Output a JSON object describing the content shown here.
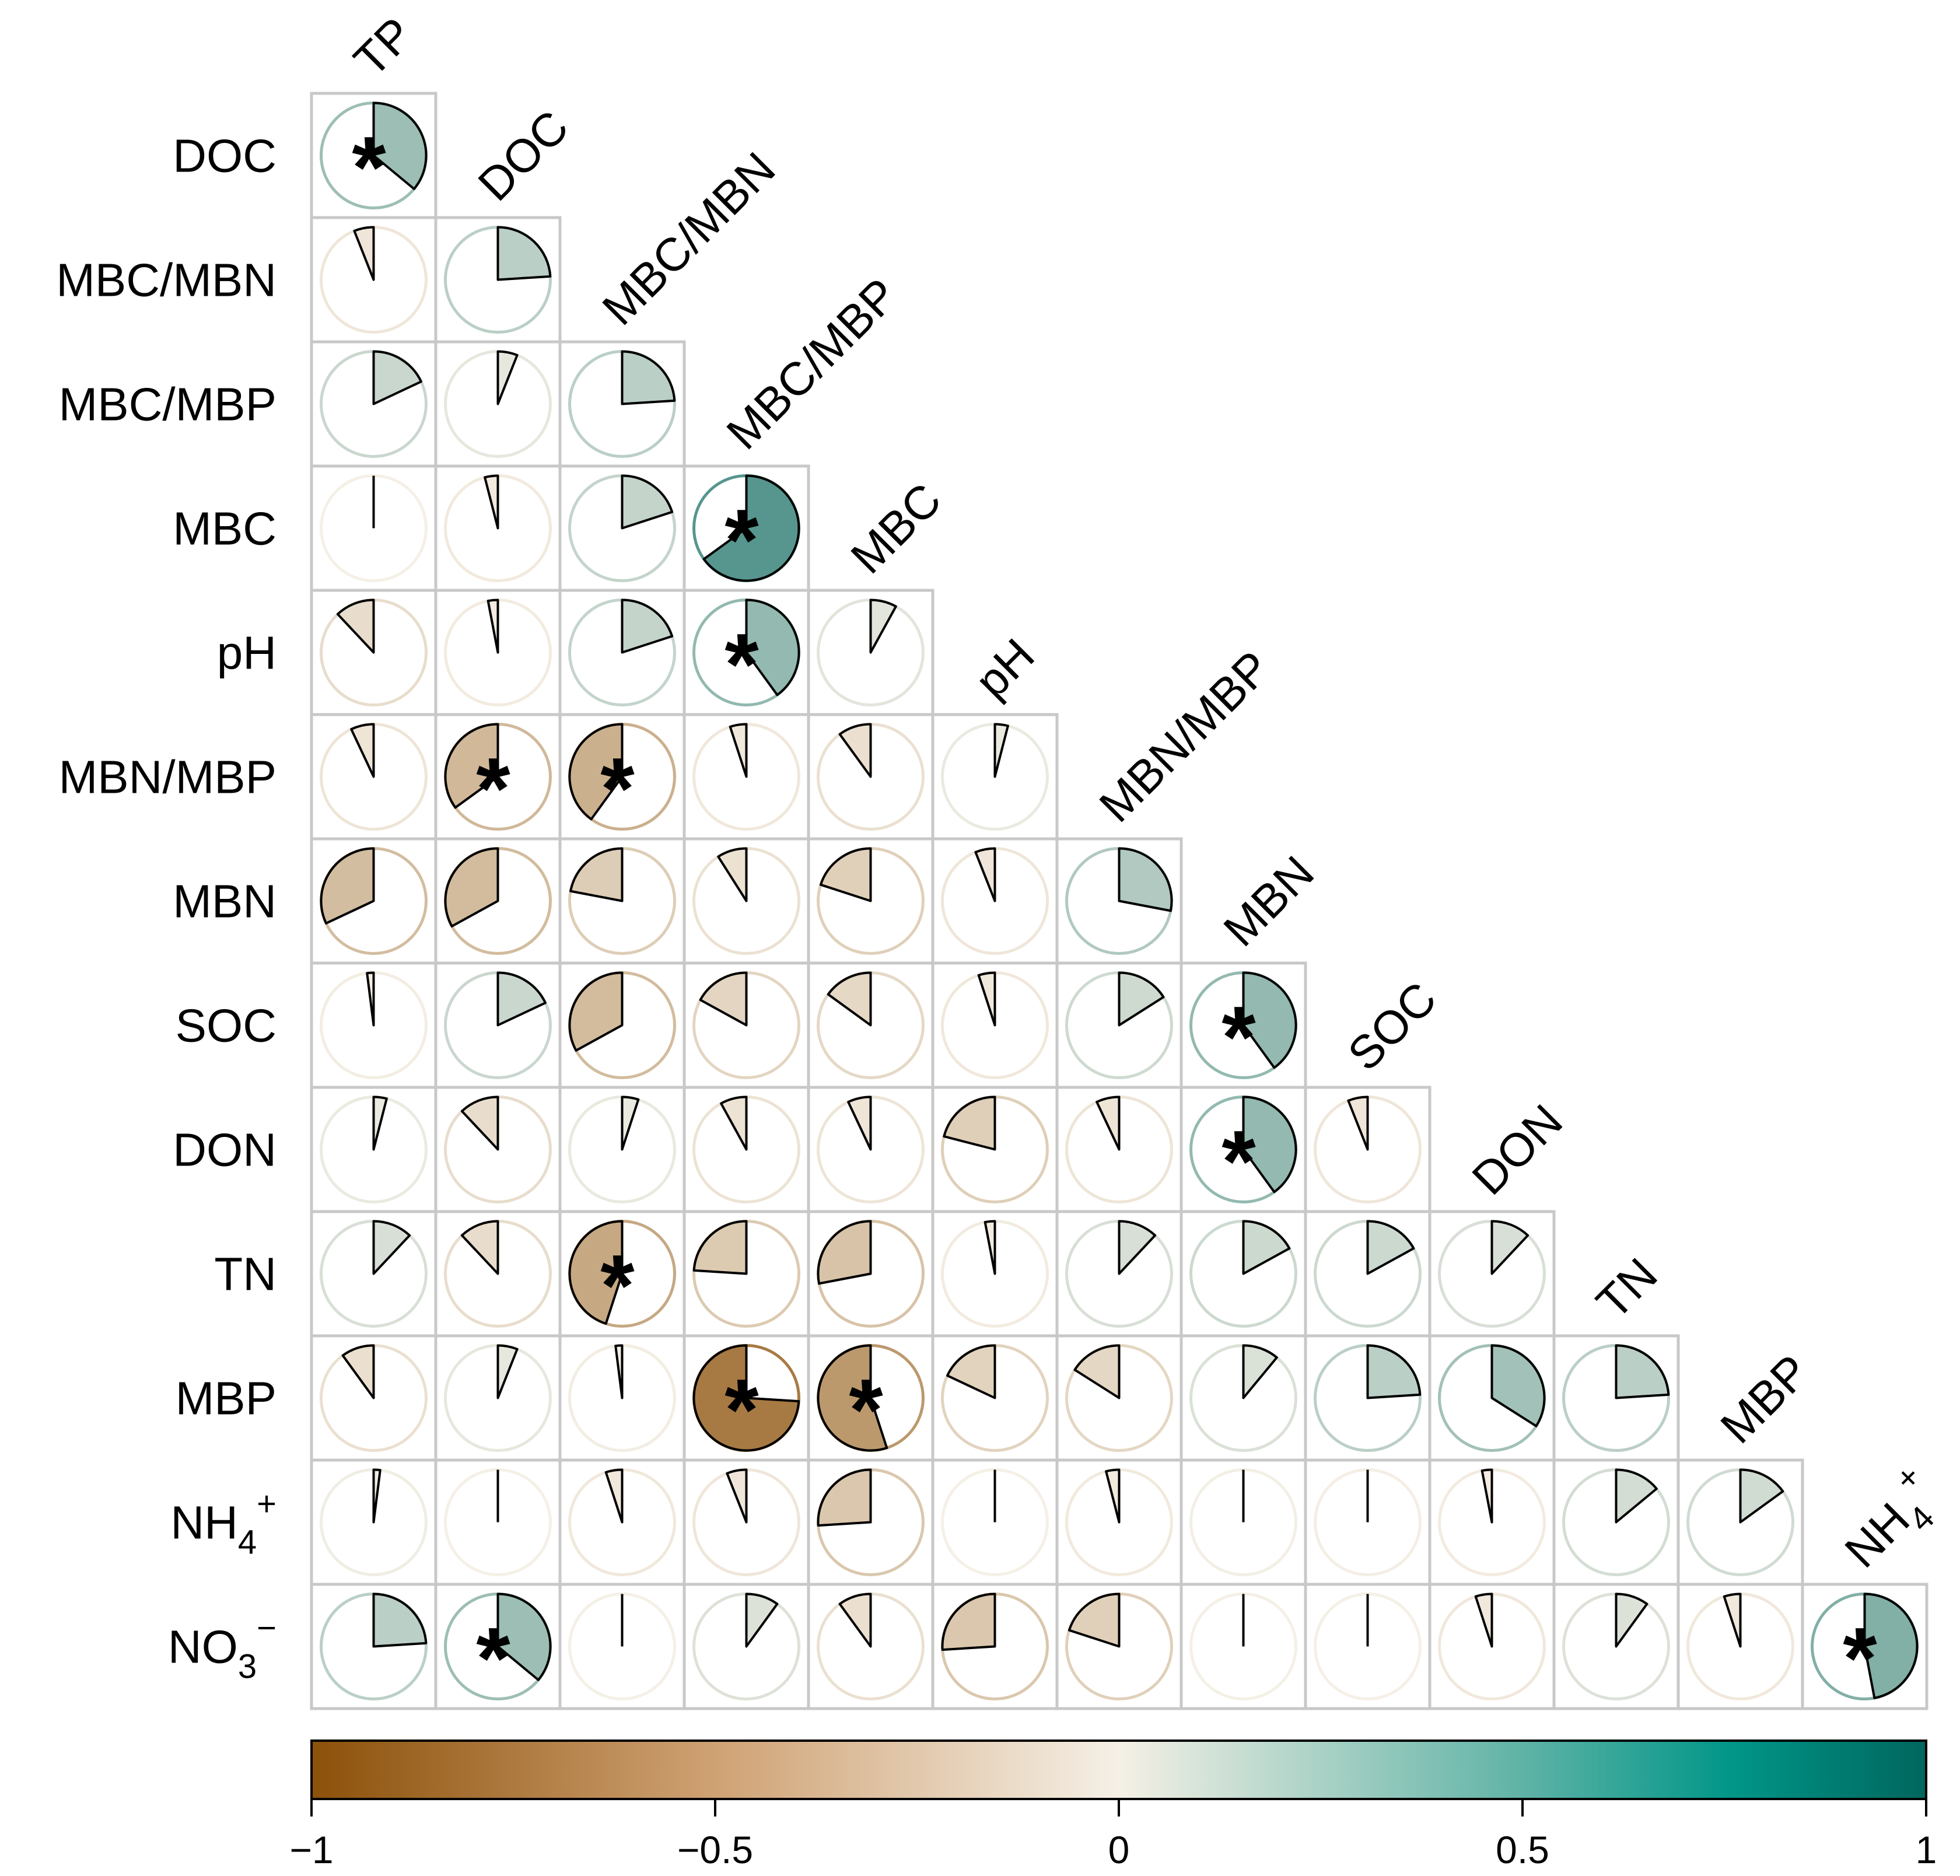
{
  "chart_data": {
    "type": "correlation-matrix-pie",
    "title": "",
    "row_labels": [
      "DOC",
      "MBC/MBN",
      "MBC/MBP",
      "MBC",
      "pH",
      "MBN/MBP",
      "MBN",
      "SOC",
      "DON",
      "TN",
      "MBP",
      "NH4+",
      "NO3−"
    ],
    "column_labels": [
      "TP",
      "DOC",
      "MBC/MBN",
      "MBC/MBP",
      "MBC",
      "pH",
      "MBN/MBP",
      "MBN",
      "SOC",
      "DON",
      "TN",
      "MBP",
      "NH4+"
    ],
    "matrix": [
      [
        0.36
      ],
      [
        -0.06,
        0.24
      ],
      [
        0.18,
        0.06,
        0.24
      ],
      [
        0.0,
        -0.04,
        0.2,
        0.65
      ],
      [
        -0.12,
        -0.03,
        0.2,
        0.4,
        0.08
      ],
      [
        -0.07,
        -0.35,
        -0.4,
        -0.05,
        -0.1,
        0.04
      ],
      [
        -0.32,
        -0.33,
        -0.22,
        -0.09,
        -0.2,
        -0.06,
        0.28
      ],
      [
        -0.02,
        0.18,
        -0.33,
        -0.17,
        -0.15,
        -0.05,
        0.16,
        0.4
      ],
      [
        0.04,
        -0.12,
        0.05,
        -0.08,
        -0.07,
        -0.21,
        -0.07,
        0.4,
        -0.06
      ],
      [
        0.12,
        -0.12,
        -0.45,
        -0.24,
        -0.28,
        -0.03,
        0.12,
        0.17,
        0.17,
        0.12
      ],
      [
        -0.1,
        0.06,
        -0.02,
        -0.74,
        -0.55,
        -0.18,
        -0.16,
        0.11,
        0.24,
        0.34,
        0.24
      ],
      [
        0.02,
        0.0,
        -0.05,
        -0.06,
        -0.26,
        0.0,
        -0.04,
        0.01,
        -0.01,
        -0.03,
        0.14,
        0.15
      ],
      [
        0.24,
        0.36,
        0.0,
        0.1,
        -0.1,
        -0.26,
        -0.2,
        0.0,
        0.0,
        -0.05,
        0.1,
        -0.05,
        0.47
      ]
    ],
    "significance_marker": "*",
    "significant_cells": [
      [
        0,
        0
      ],
      [
        3,
        3
      ],
      [
        4,
        3
      ],
      [
        5,
        1
      ],
      [
        5,
        2
      ],
      [
        7,
        7
      ],
      [
        8,
        7
      ],
      [
        9,
        2
      ],
      [
        10,
        3
      ],
      [
        10,
        4
      ],
      [
        12,
        1
      ],
      [
        12,
        12
      ]
    ],
    "colorbar": {
      "range": [
        -1,
        1
      ],
      "ticks": [
        "−1",
        "−0.5",
        "0",
        "0.5",
        "1"
      ],
      "tick_values": [
        -1,
        -0.5,
        0,
        0.5,
        1
      ],
      "palette": [
        "#8c510a",
        "#f5f0e6",
        "#01665e"
      ]
    }
  }
}
